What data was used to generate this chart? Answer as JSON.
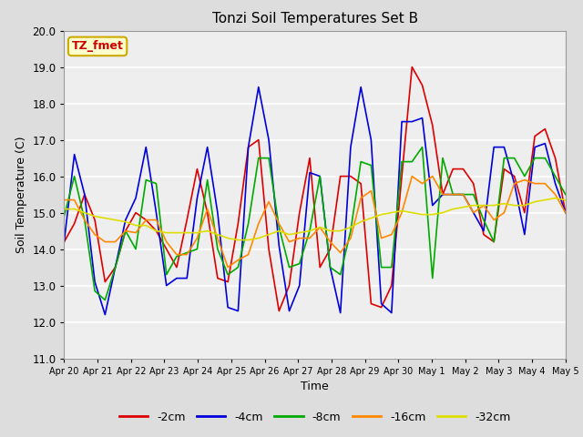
{
  "title": "Tonzi Soil Temperatures Set B",
  "xlabel": "Time",
  "ylabel": "Soil Temperature (C)",
  "ylim": [
    11.0,
    20.0
  ],
  "yticks": [
    11.0,
    12.0,
    13.0,
    14.0,
    15.0,
    16.0,
    17.0,
    18.0,
    19.0,
    20.0
  ],
  "annotation_text": "TZ_fmet",
  "annotation_bg": "#ffffcc",
  "annotation_border": "#ccaa00",
  "annotation_text_color": "#cc0000",
  "x_labels": [
    "Apr 20",
    "Apr 21",
    "Apr 22",
    "Apr 23",
    "Apr 24",
    "Apr 25",
    "Apr 26",
    "Apr 27",
    "Apr 28",
    "Apr 29",
    "Apr 30",
    "May 1",
    "May 2",
    "May 3",
    "May 4",
    "May 5"
  ],
  "series": [
    {
      "label": "-2cm",
      "color": "#dd0000",
      "data": [
        14.2,
        14.7,
        15.5,
        14.8,
        13.1,
        13.5,
        14.5,
        15.0,
        14.8,
        14.5,
        14.0,
        13.5,
        14.8,
        16.2,
        15.0,
        13.2,
        13.1,
        14.7,
        16.8,
        17.0,
        14.0,
        12.3,
        13.0,
        15.0,
        16.5,
        13.5,
        14.0,
        16.0,
        16.0,
        15.8,
        12.5,
        12.4,
        13.0,
        16.0,
        19.0,
        18.5,
        17.4,
        15.5,
        16.2,
        16.2,
        15.8,
        14.4,
        14.2,
        16.2,
        16.0,
        15.0,
        17.1,
        17.3,
        16.5,
        15.0
      ]
    },
    {
      "label": "-4cm",
      "color": "#0000dd",
      "data": [
        14.2,
        16.6,
        15.5,
        13.1,
        12.2,
        13.5,
        14.8,
        15.4,
        16.8,
        15.0,
        13.0,
        13.2,
        13.2,
        15.4,
        16.8,
        15.0,
        12.4,
        12.3,
        16.8,
        18.45,
        17.0,
        14.1,
        12.3,
        13.0,
        16.1,
        16.0,
        13.5,
        12.25,
        16.8,
        18.45,
        17.0,
        12.5,
        12.25,
        17.5,
        17.5,
        17.6,
        15.2,
        15.5,
        15.5,
        15.5,
        15.0,
        14.5,
        16.8,
        16.8,
        15.8,
        14.4,
        16.8,
        16.9,
        15.8,
        15.0
      ]
    },
    {
      "label": "-8cm",
      "color": "#00aa00",
      "data": [
        14.9,
        16.0,
        14.8,
        12.85,
        12.6,
        13.5,
        14.5,
        14.0,
        15.9,
        15.8,
        13.3,
        13.8,
        13.9,
        14.0,
        15.9,
        14.0,
        13.3,
        13.5,
        14.7,
        16.5,
        16.5,
        14.6,
        13.5,
        13.6,
        14.5,
        16.0,
        13.5,
        13.3,
        14.5,
        16.4,
        16.3,
        13.5,
        13.5,
        16.4,
        16.4,
        16.8,
        13.2,
        16.5,
        15.5,
        15.5,
        15.5,
        14.8,
        14.2,
        16.5,
        16.5,
        16.0,
        16.5,
        16.5,
        16.0,
        15.5
      ]
    },
    {
      "label": "-16cm",
      "color": "#ff8800",
      "data": [
        15.35,
        15.35,
        14.8,
        14.4,
        14.2,
        14.2,
        14.5,
        14.45,
        14.8,
        14.8,
        14.2,
        13.85,
        13.85,
        14.3,
        15.1,
        14.3,
        13.5,
        13.7,
        13.85,
        14.7,
        15.3,
        14.7,
        14.2,
        14.3,
        14.3,
        14.6,
        14.2,
        13.9,
        14.3,
        15.4,
        15.6,
        14.3,
        14.4,
        15.0,
        16.0,
        15.8,
        16.0,
        15.5,
        15.5,
        15.5,
        15.0,
        15.2,
        14.8,
        15.0,
        15.8,
        15.9,
        15.8,
        15.8,
        15.5,
        15.0
      ]
    },
    {
      "label": "-32cm",
      "color": "#dddd00",
      "data": [
        15.1,
        15.1,
        15.0,
        14.9,
        14.85,
        14.8,
        14.75,
        14.65,
        14.65,
        14.5,
        14.45,
        14.45,
        14.45,
        14.45,
        14.5,
        14.4,
        14.3,
        14.25,
        14.25,
        14.3,
        14.4,
        14.5,
        14.4,
        14.45,
        14.5,
        14.6,
        14.5,
        14.5,
        14.6,
        14.75,
        14.85,
        14.95,
        15.0,
        15.05,
        15.0,
        14.95,
        14.95,
        15.0,
        15.1,
        15.15,
        15.2,
        15.2,
        15.2,
        15.25,
        15.2,
        15.2,
        15.3,
        15.35,
        15.4,
        15.35
      ]
    }
  ],
  "bg_color": "#dddddd",
  "plot_bg_color": "#eeeeee",
  "grid_color": "#ffffff",
  "legend_colors": [
    "#dd0000",
    "#0000dd",
    "#00aa00",
    "#ff8800",
    "#dddd00"
  ],
  "legend_labels": [
    "-2cm",
    "-4cm",
    "-8cm",
    "-16cm",
    "-32cm"
  ]
}
